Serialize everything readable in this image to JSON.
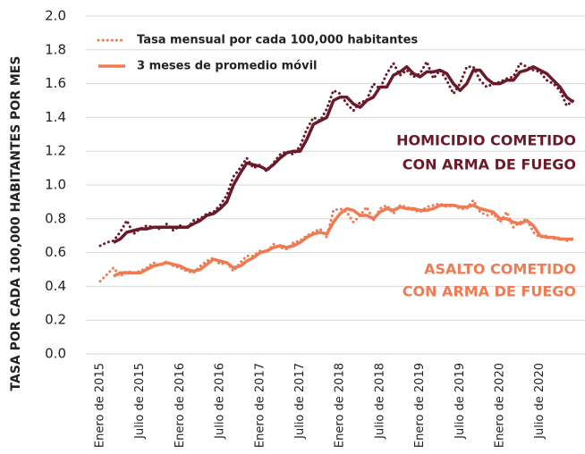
{
  "chart_data": {
    "type": "line",
    "y_label": "TASA POR CADA 100,000 HABITANTES POR MES",
    "categories": [
      "Enero de 2015",
      null,
      null,
      null,
      null,
      null,
      "Julio de 2015",
      null,
      null,
      null,
      null,
      null,
      "Enero de 2016",
      null,
      null,
      null,
      null,
      null,
      "Julio de 2016",
      null,
      null,
      null,
      null,
      null,
      "Enero de 2017",
      null,
      null,
      null,
      null,
      null,
      "Julio de 2017",
      null,
      null,
      null,
      null,
      null,
      "Enero de 2018",
      null,
      null,
      null,
      null,
      null,
      "Julio de 2018",
      null,
      null,
      null,
      null,
      null,
      "Enero de 2019",
      null,
      null,
      null,
      null,
      null,
      "Julio de 2019",
      null,
      null,
      null,
      null,
      null,
      "Enero de 2020",
      null,
      null,
      null,
      null,
      null,
      "Julio de 2020",
      null,
      null,
      null,
      null,
      null
    ],
    "ylim": [
      0,
      2
    ],
    "yticks": [
      {
        "value": 0,
        "label": "0.0"
      },
      0.2,
      0.4,
      0.6,
      0.8,
      {
        "value": 1,
        "label": "1.0"
      },
      1.2,
      1.4,
      1.6,
      1.8,
      {
        "value": 2,
        "label": "2.0"
      }
    ],
    "grid": true,
    "legend": [
      {
        "label": "Tasa mensual por cada 100,000 habitantes",
        "style": "dotted",
        "color": "#f07a52"
      },
      {
        "label": "3 meses de promedio móvil",
        "style": "solid",
        "color": "#f07a52"
      }
    ],
    "series": [
      {
        "style": "dotted",
        "color": "#6b1a2a",
        "values": [
          0.64,
          0.66,
          0.67,
          0.72,
          0.79,
          0.71,
          0.74,
          0.76,
          0.75,
          0.74,
          0.77,
          0.73,
          0.76,
          0.74,
          0.79,
          0.8,
          0.83,
          0.84,
          0.88,
          0.94,
          1.05,
          1.1,
          1.16,
          1.1,
          1.12,
          1.08,
          1.13,
          1.18,
          1.2,
          1.18,
          1.23,
          1.33,
          1.4,
          1.38,
          1.45,
          1.56,
          1.54,
          1.48,
          1.44,
          1.49,
          1.5,
          1.6,
          1.57,
          1.66,
          1.72,
          1.65,
          1.68,
          1.64,
          1.66,
          1.73,
          1.63,
          1.68,
          1.62,
          1.54,
          1.6,
          1.7,
          1.7,
          1.62,
          1.58,
          1.6,
          1.61,
          1.63,
          1.64,
          1.72,
          1.7,
          1.68,
          1.67,
          1.62,
          1.6,
          1.56,
          1.47,
          1.5
        ]
      },
      {
        "style": "solid",
        "color": "#6b1a2a",
        "values": [
          null,
          null,
          0.66,
          0.68,
          0.72,
          0.73,
          0.74,
          0.74,
          0.75,
          0.75,
          0.75,
          0.75,
          0.75,
          0.75,
          0.77,
          0.79,
          0.82,
          0.83,
          0.86,
          0.9,
          1.0,
          1.07,
          1.13,
          1.12,
          1.11,
          1.09,
          1.12,
          1.16,
          1.19,
          1.2,
          1.2,
          1.27,
          1.36,
          1.38,
          1.4,
          1.5,
          1.52,
          1.52,
          1.48,
          1.46,
          1.5,
          1.52,
          1.58,
          1.58,
          1.65,
          1.67,
          1.7,
          1.66,
          1.64,
          1.67,
          1.67,
          1.68,
          1.66,
          1.6,
          1.56,
          1.6,
          1.68,
          1.68,
          1.63,
          1.6,
          1.6,
          1.62,
          1.62,
          1.67,
          1.68,
          1.7,
          1.68,
          1.66,
          1.62,
          1.58,
          1.52,
          1.49
        ]
      },
      {
        "style": "dotted",
        "color": "#f07a52",
        "values": [
          0.43,
          0.47,
          0.51,
          0.46,
          0.49,
          0.48,
          0.49,
          0.51,
          0.54,
          0.52,
          0.55,
          0.52,
          0.51,
          0.49,
          0.48,
          0.52,
          0.55,
          0.57,
          0.53,
          0.54,
          0.49,
          0.54,
          0.58,
          0.58,
          0.61,
          0.6,
          0.65,
          0.63,
          0.62,
          0.66,
          0.67,
          0.7,
          0.72,
          0.74,
          0.69,
          0.85,
          0.86,
          0.84,
          0.78,
          0.82,
          0.87,
          0.79,
          0.86,
          0.88,
          0.83,
          0.88,
          0.87,
          0.85,
          0.84,
          0.87,
          0.88,
          0.89,
          0.87,
          0.88,
          0.86,
          0.86,
          0.91,
          0.84,
          0.82,
          0.83,
          0.78,
          0.84,
          0.75,
          0.78,
          0.8,
          0.72,
          0.69,
          0.7,
          0.68,
          0.69,
          0.67,
          0.68
        ]
      },
      {
        "style": "solid",
        "color": "#f07a52",
        "values": [
          null,
          null,
          0.46,
          0.48,
          0.48,
          0.48,
          0.48,
          0.5,
          0.52,
          0.53,
          0.54,
          0.53,
          0.52,
          0.5,
          0.49,
          0.5,
          0.53,
          0.56,
          0.55,
          0.54,
          0.51,
          0.52,
          0.55,
          0.57,
          0.6,
          0.61,
          0.63,
          0.64,
          0.63,
          0.64,
          0.66,
          0.69,
          0.71,
          0.72,
          0.71,
          0.78,
          0.83,
          0.86,
          0.85,
          0.82,
          0.82,
          0.8,
          0.84,
          0.86,
          0.85,
          0.87,
          0.86,
          0.86,
          0.85,
          0.85,
          0.86,
          0.88,
          0.88,
          0.88,
          0.87,
          0.87,
          0.88,
          0.86,
          0.85,
          0.84,
          0.8,
          0.8,
          0.78,
          0.77,
          0.79,
          0.76,
          0.7,
          0.69,
          0.69,
          0.68,
          0.68,
          0.68
        ]
      }
    ],
    "annotations": [
      {
        "lines": [
          "HOMICIDIO COMETIDO",
          "CON ARMA DE FUEGO"
        ],
        "color": "#6b1a2a"
      },
      {
        "lines": [
          "ASALTO COMETIDO",
          "CON ARMA DE FUEGO"
        ],
        "color": "#f07a52"
      }
    ]
  }
}
